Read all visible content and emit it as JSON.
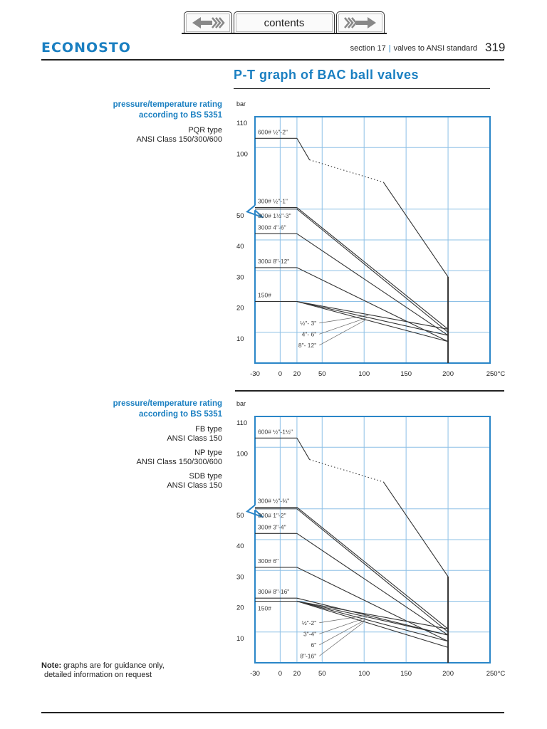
{
  "nav": {
    "prev_icon": "arrow-left-icon",
    "contents_label": "contents",
    "next_icon": "arrow-right-icon"
  },
  "header": {
    "logo": "ECONOSTO",
    "section": "section 17",
    "separator": "|",
    "section_title": "valves to ANSI standard",
    "page_number": "319"
  },
  "title": "P-T graph of BAC ball valves",
  "colors": {
    "accent": "#1a7fc1",
    "grid": "#8dc0e6",
    "frame": "#2a86c8",
    "lines": "#333333"
  },
  "blocks": [
    {
      "heading1": "pressure/temperature rating",
      "heading2": "according to BS 5351",
      "types": [
        "PQR type",
        "ANSI Class 150/300/600"
      ]
    },
    {
      "heading1": "pressure/temperature rating",
      "heading2": "according to BS 5351",
      "types": [
        "FB type",
        "ANSI Class 150",
        "NP type",
        "ANSI Class 150/300/600",
        "SDB type",
        "ANSI Class 150"
      ]
    }
  ],
  "note": {
    "label": "Note:",
    "line1": "graphs are for guidance only,",
    "line2": "detailed information on request"
  },
  "chart_data": [
    {
      "type": "line",
      "ylabel": "bar",
      "xunit": "°C",
      "xticks": [
        "-30",
        "0",
        "20",
        "50",
        "100",
        "150",
        "200",
        "250°C"
      ],
      "xtick_values": [
        -30,
        0,
        20,
        50,
        100,
        150,
        200,
        250
      ],
      "yticks": [
        "10",
        "20",
        "30",
        "40",
        "50",
        "100",
        "110"
      ],
      "ytick_values": [
        10,
        20,
        30,
        40,
        50,
        100,
        110
      ],
      "xlim": [
        -30,
        250
      ],
      "ylim": [
        0,
        110
      ],
      "y_axis_break": [
        50,
        100
      ],
      "grid": true,
      "series": [
        {
          "name": "600# ½\"-2\"",
          "points": [
            [
              -30,
              103
            ],
            [
              20,
              103
            ],
            [
              35,
              96
            ],
            [
              123,
              85
            ],
            [
              200,
              28
            ],
            [
              200,
              0
            ]
          ],
          "dotted_segment": [
            2,
            3
          ]
        },
        {
          "name": "300# ½\"-1\"",
          "points": [
            [
              -30,
              52
            ],
            [
              20,
              52
            ],
            [
              200,
              11
            ]
          ]
        },
        {
          "name": "300# 1½\"-3\"",
          "points": [
            [
              -30,
              50
            ],
            [
              20,
              50
            ],
            [
              200,
              10
            ]
          ]
        },
        {
          "name": "300# 4\"-6\"",
          "points": [
            [
              -30,
              42
            ],
            [
              20,
              42
            ],
            [
              200,
              9
            ]
          ]
        },
        {
          "name": "300# 8\"-12\"",
          "points": [
            [
              -30,
              31
            ],
            [
              20,
              31
            ],
            [
              200,
              7
            ]
          ]
        },
        {
          "name": "150#",
          "points": [
            [
              -30,
              20
            ],
            [
              20,
              20
            ]
          ]
        },
        {
          "name": "½\"- 3\"",
          "points": [
            [
              20,
              20
            ],
            [
              200,
              11
            ]
          ],
          "leader": true
        },
        {
          "name": "4\"- 6\"",
          "points": [
            [
              20,
              20
            ],
            [
              200,
              9
            ]
          ],
          "leader": true
        },
        {
          "name": "8\"- 12\"",
          "points": [
            [
              20,
              20
            ],
            [
              200,
              7
            ]
          ],
          "leader": true
        }
      ]
    },
    {
      "type": "line",
      "ylabel": "bar",
      "xunit": "°C",
      "xticks": [
        "-30",
        "0",
        "20",
        "50",
        "100",
        "150",
        "200",
        "250°C"
      ],
      "xtick_values": [
        -30,
        0,
        20,
        50,
        100,
        150,
        200,
        250
      ],
      "yticks": [
        "10",
        "20",
        "30",
        "40",
        "50",
        "100",
        "110"
      ],
      "ytick_values": [
        10,
        20,
        30,
        40,
        50,
        100,
        110
      ],
      "xlim": [
        -30,
        250
      ],
      "ylim": [
        0,
        110
      ],
      "y_axis_break": [
        50,
        100
      ],
      "grid": true,
      "series": [
        {
          "name": "600# ½\"-1½\"",
          "points": [
            [
              -30,
              103
            ],
            [
              20,
              103
            ],
            [
              35,
              96
            ],
            [
              123,
              85
            ],
            [
              200,
              28
            ],
            [
              200,
              0
            ]
          ],
          "dotted_segment": [
            2,
            3
          ]
        },
        {
          "name": "300# ½\"-¾\"",
          "points": [
            [
              -30,
              52
            ],
            [
              20,
              52
            ],
            [
              200,
              11
            ]
          ]
        },
        {
          "name": "300# 1\"-2\"",
          "points": [
            [
              -30,
              50
            ],
            [
              20,
              50
            ],
            [
              200,
              10
            ]
          ]
        },
        {
          "name": "300# 3\"-4\"",
          "points": [
            [
              -30,
              42
            ],
            [
              20,
              42
            ],
            [
              200,
              9
            ]
          ]
        },
        {
          "name": "300# 6\"",
          "points": [
            [
              -30,
              31
            ],
            [
              20,
              31
            ],
            [
              200,
              7
            ]
          ]
        },
        {
          "name": "300# 8\"-16\"",
          "points": [
            [
              -30,
              21
            ],
            [
              20,
              21
            ],
            [
              200,
              9
            ]
          ]
        },
        {
          "name": "150#",
          "points": [
            [
              -30,
              20
            ],
            [
              20,
              20
            ]
          ],
          "label_below": true
        },
        {
          "name": "½\"-2\"",
          "points": [
            [
              20,
              20
            ],
            [
              200,
              11
            ]
          ],
          "leader": true
        },
        {
          "name": "3\"-4\"",
          "points": [
            [
              20,
              20
            ],
            [
              200,
              9
            ]
          ],
          "leader": true
        },
        {
          "name": "6\"",
          "points": [
            [
              20,
              20
            ],
            [
              200,
              7
            ]
          ],
          "leader": true
        },
        {
          "name": "8\"-16\"",
          "points": [
            [
              20,
              20
            ],
            [
              200,
              5
            ]
          ],
          "leader": true
        }
      ]
    }
  ]
}
